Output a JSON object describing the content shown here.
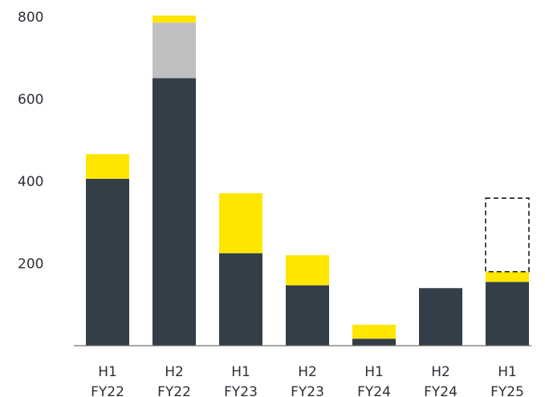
{
  "chart_data": {
    "type": "bar",
    "stacked": true,
    "title": "",
    "xlabel": "",
    "ylabel": "",
    "ylim": [
      0,
      800
    ],
    "yticks": [
      200,
      400,
      600,
      800
    ],
    "grid": false,
    "legend": "none",
    "categories": [
      [
        "H1",
        "FY22"
      ],
      [
        "H2",
        "FY22"
      ],
      [
        "H1",
        "FY23"
      ],
      [
        "H2",
        "FY23"
      ],
      [
        "H1",
        "FY24"
      ],
      [
        "H2",
        "FY24"
      ],
      [
        "H1",
        "FY25"
      ]
    ],
    "series": [
      {
        "color": "#333e48",
        "values": [
          406,
          651,
          225,
          147,
          17,
          140,
          155
        ]
      },
      {
        "color": "#bfc0c2",
        "values": [
          0,
          135,
          0,
          0,
          0,
          0,
          0
        ]
      },
      {
        "color": "#ffe600",
        "values": [
          60,
          17,
          146,
          73,
          34,
          0,
          25
        ]
      }
    ],
    "outline_segment": {
      "category_index": 6,
      "style": "dashed",
      "from": 180,
      "to": 359
    }
  }
}
